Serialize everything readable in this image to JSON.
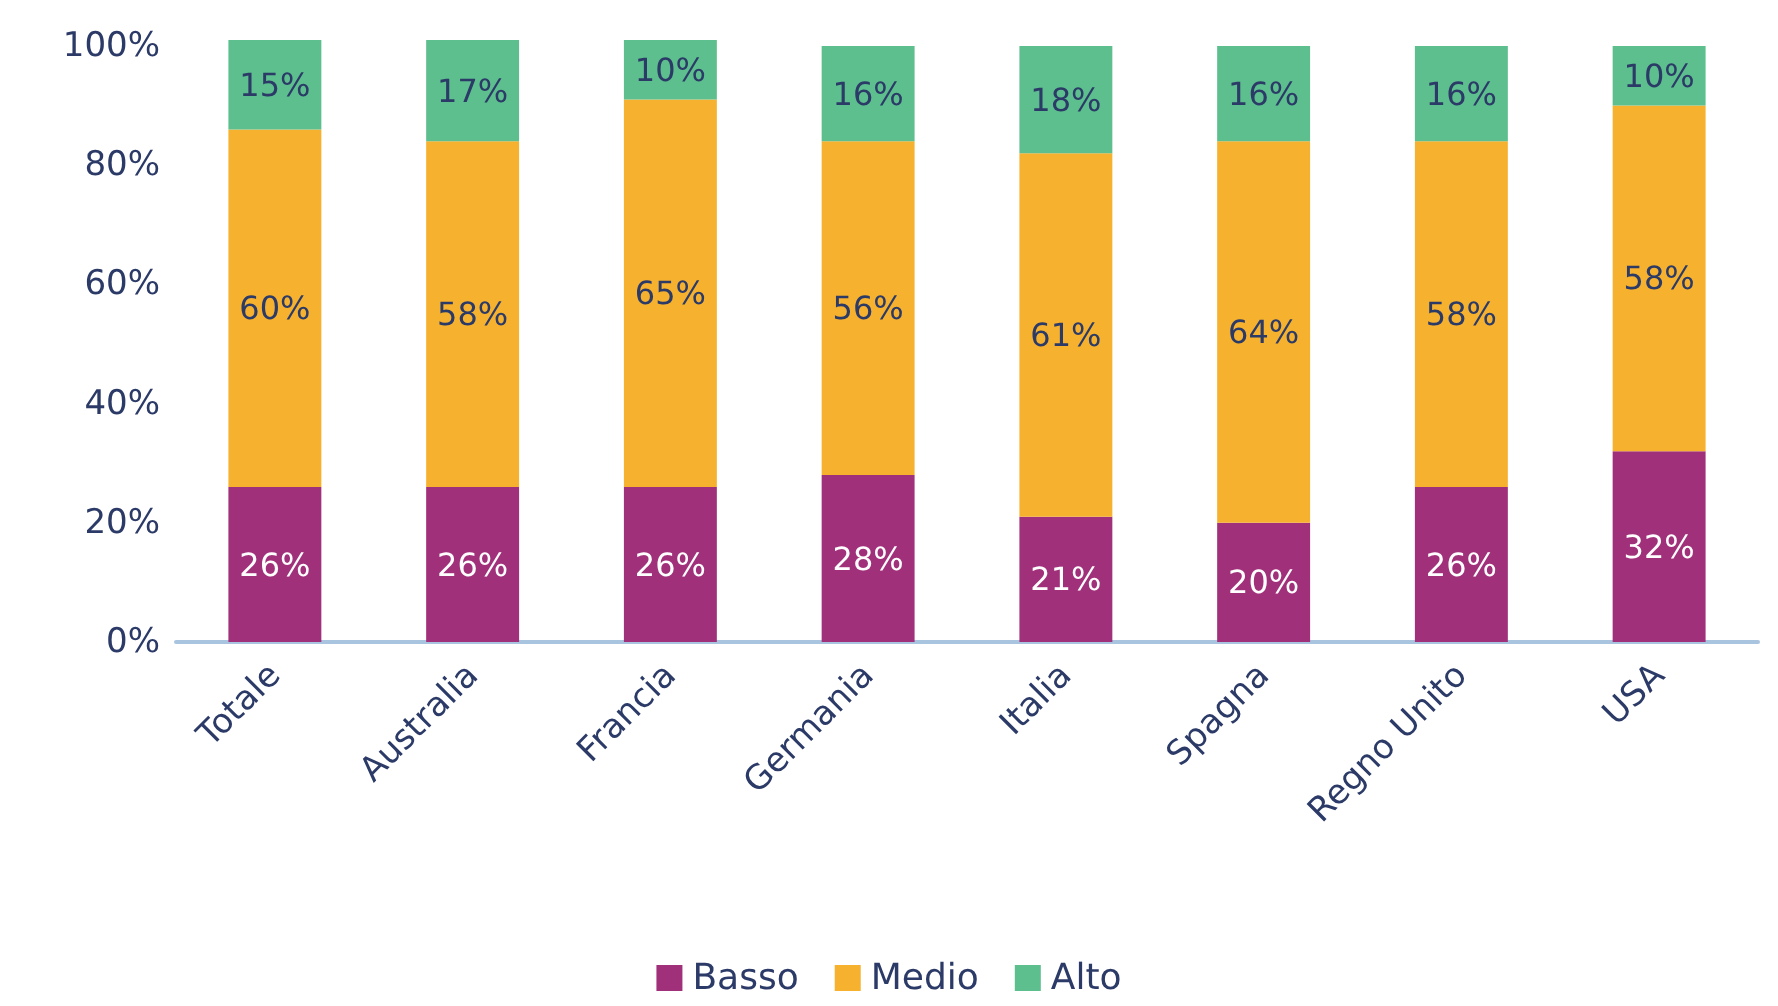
{
  "chart_data": {
    "type": "bar",
    "stacked": true,
    "categories": [
      "Totale",
      "Australia",
      "Francia",
      "Germania",
      "Italia",
      "Spagna",
      "Regno Unito",
      "USA"
    ],
    "series": [
      {
        "name": "Basso",
        "color": "#a1307a",
        "values": [
          26,
          26,
          26,
          28,
          21,
          20,
          26,
          32
        ],
        "value_labels": [
          "26%",
          "26%",
          "26%",
          "28%",
          "21%",
          "20%",
          "26%",
          "32%"
        ]
      },
      {
        "name": "Medio",
        "color": "#f6b22f",
        "values": [
          60,
          58,
          65,
          56,
          61,
          64,
          58,
          58
        ],
        "value_labels": [
          "60%",
          "58%",
          "65%",
          "56%",
          "61%",
          "64%",
          "58%",
          "58%"
        ]
      },
      {
        "name": "Alto",
        "color": "#5dbf8e",
        "values": [
          15,
          17,
          10,
          16,
          18,
          16,
          16,
          10
        ],
        "value_labels": [
          "15%",
          "17%",
          "10%",
          "16%",
          "18%",
          "16%",
          "16%",
          "10%"
        ]
      }
    ],
    "ylim": [
      0,
      101
    ],
    "yticks": [
      {
        "value": 0,
        "label": "0%"
      },
      {
        "value": 20,
        "label": "20%"
      },
      {
        "value": 40,
        "label": "40%"
      },
      {
        "value": 60,
        "label": "60%"
      },
      {
        "value": 80,
        "label": "80%"
      },
      {
        "value": 100,
        "label": "100%"
      }
    ],
    "grid": false,
    "legend": "bottom"
  }
}
